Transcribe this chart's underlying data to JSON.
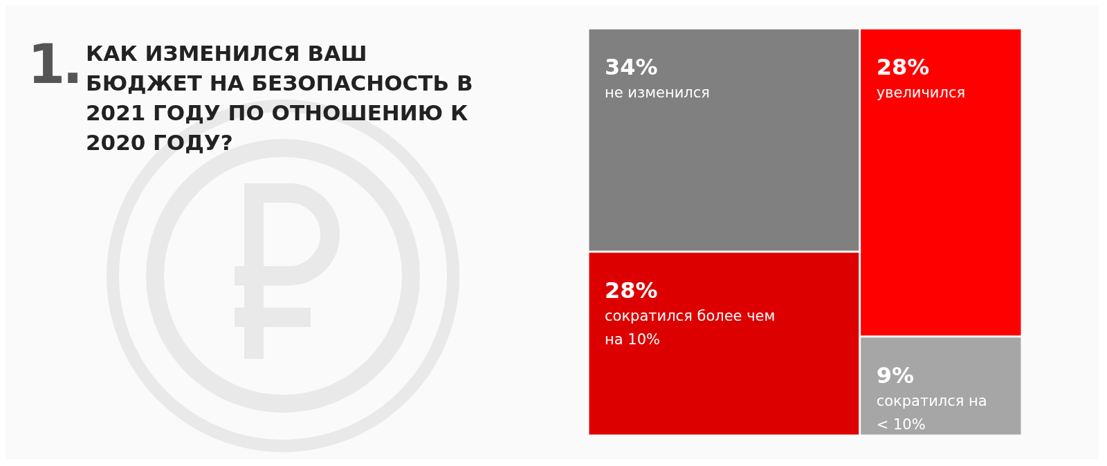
{
  "chart_data": {
    "type": "other",
    "title": "КАК ИЗМЕНИЛСЯ ВАШ БЮДЖЕТ НА БЕЗОПАСНОСТЬ В 2021 ГОДУ ПО ОТНОШЕНИЮ К 2020 ГОДУ?",
    "annotations": [
      "1."
    ],
    "categories": [
      "не изменился",
      "сократился более чем на 10%",
      "увеличился",
      "сократился на < 10%"
    ],
    "values": [
      34,
      28,
      28,
      9
    ],
    "value_labels": [
      "34%",
      "28%",
      "28%",
      "9%"
    ],
    "colors": [
      "#808080",
      "#dd0000",
      "#ff0000",
      "#a6a6a6"
    ]
  }
}
